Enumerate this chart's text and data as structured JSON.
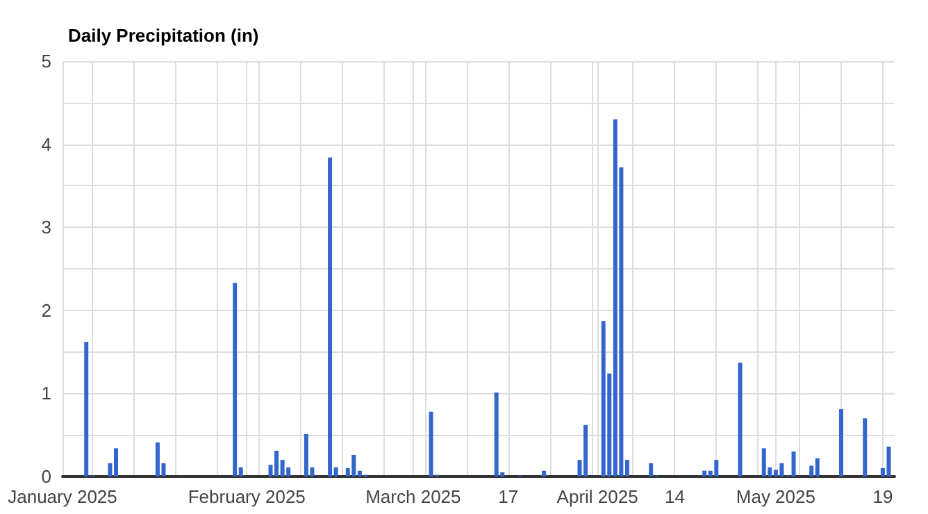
{
  "chart_data": {
    "type": "bar",
    "title": "Daily Precipitation (in)",
    "x": [
      "2025-01-05",
      "2025-01-06",
      "2025-01-09",
      "2025-01-10",
      "2025-01-17",
      "2025-01-18",
      "2025-01-30",
      "2025-01-31",
      "2025-02-05",
      "2025-02-06",
      "2025-02-07",
      "2025-02-08",
      "2025-02-11",
      "2025-02-12",
      "2025-02-15",
      "2025-02-16",
      "2025-02-18",
      "2025-02-19",
      "2025-02-20",
      "2025-02-21",
      "2025-03-04",
      "2025-03-05",
      "2025-03-15",
      "2025-03-16",
      "2025-03-19",
      "2025-03-23",
      "2025-03-29",
      "2025-03-30",
      "2025-04-02",
      "2025-04-03",
      "2025-04-04",
      "2025-04-05",
      "2025-04-06",
      "2025-04-10",
      "2025-04-11",
      "2025-04-19",
      "2025-04-20",
      "2025-04-21",
      "2025-04-25",
      "2025-04-29",
      "2025-04-30",
      "2025-05-01",
      "2025-05-02",
      "2025-05-03",
      "2025-05-04",
      "2025-05-07",
      "2025-05-08",
      "2025-05-12",
      "2025-05-16",
      "2025-05-19",
      "2025-05-20"
    ],
    "values": [
      1.62,
      0.01,
      0.16,
      0.34,
      0.41,
      0.16,
      2.33,
      0.11,
      0.14,
      0.31,
      0.2,
      0.11,
      0.51,
      0.11,
      3.84,
      0.11,
      0.1,
      0.26,
      0.07,
      0.02,
      0.78,
      0.02,
      1.01,
      0.05,
      0.01,
      0.07,
      0.2,
      0.62,
      1.87,
      1.24,
      4.3,
      3.72,
      0.2,
      0.16,
      0.01,
      0.07,
      0.07,
      0.2,
      1.37,
      0.34,
      0.11,
      0.08,
      0.16,
      0.01,
      0.3,
      0.13,
      0.22,
      0.81,
      0.7,
      0.1,
      0.36
    ],
    "color": "#3366cc",
    "xlim": [
      "2025-01-01",
      "2025-05-21"
    ],
    "xticks": [
      {
        "value": "2025-01-01",
        "label": "January 2025"
      },
      {
        "value": "2025-01-06",
        "label": null
      },
      {
        "value": "2025-01-13",
        "label": null
      },
      {
        "value": "2025-01-20",
        "label": null
      },
      {
        "value": "2025-01-27",
        "label": null
      },
      {
        "value": "2025-02-01",
        "label": "February 2025"
      },
      {
        "value": "2025-02-03",
        "label": null
      },
      {
        "value": "2025-02-10",
        "label": null
      },
      {
        "value": "2025-02-17",
        "label": null
      },
      {
        "value": "2025-02-24",
        "label": null
      },
      {
        "value": "2025-03-01",
        "label": "March 2025"
      },
      {
        "value": "2025-03-03",
        "label": null
      },
      {
        "value": "2025-03-10",
        "label": null
      },
      {
        "value": "2025-03-17",
        "label": "17"
      },
      {
        "value": "2025-03-24",
        "label": null
      },
      {
        "value": "2025-03-31",
        "label": null
      },
      {
        "value": "2025-04-01",
        "label": "April 2025"
      },
      {
        "value": "2025-04-07",
        "label": null
      },
      {
        "value": "2025-04-14",
        "label": "14"
      },
      {
        "value": "2025-04-21",
        "label": null
      },
      {
        "value": "2025-04-28",
        "label": null
      },
      {
        "value": "2025-05-01",
        "label": "May 2025"
      },
      {
        "value": "2025-05-05",
        "label": null
      },
      {
        "value": "2025-05-12",
        "label": null
      },
      {
        "value": "2025-05-19",
        "label": "19"
      }
    ],
    "ylim": [
      0,
      5
    ],
    "yticks": [
      0,
      {
        "value": 0.5,
        "label": null
      },
      1,
      {
        "value": 1.5,
        "label": null
      },
      2,
      {
        "value": 2.5,
        "label": null
      },
      3,
      {
        "value": 3.5,
        "label": null
      },
      4,
      {
        "value": 4.5,
        "label": null
      },
      5
    ],
    "grid": true
  }
}
